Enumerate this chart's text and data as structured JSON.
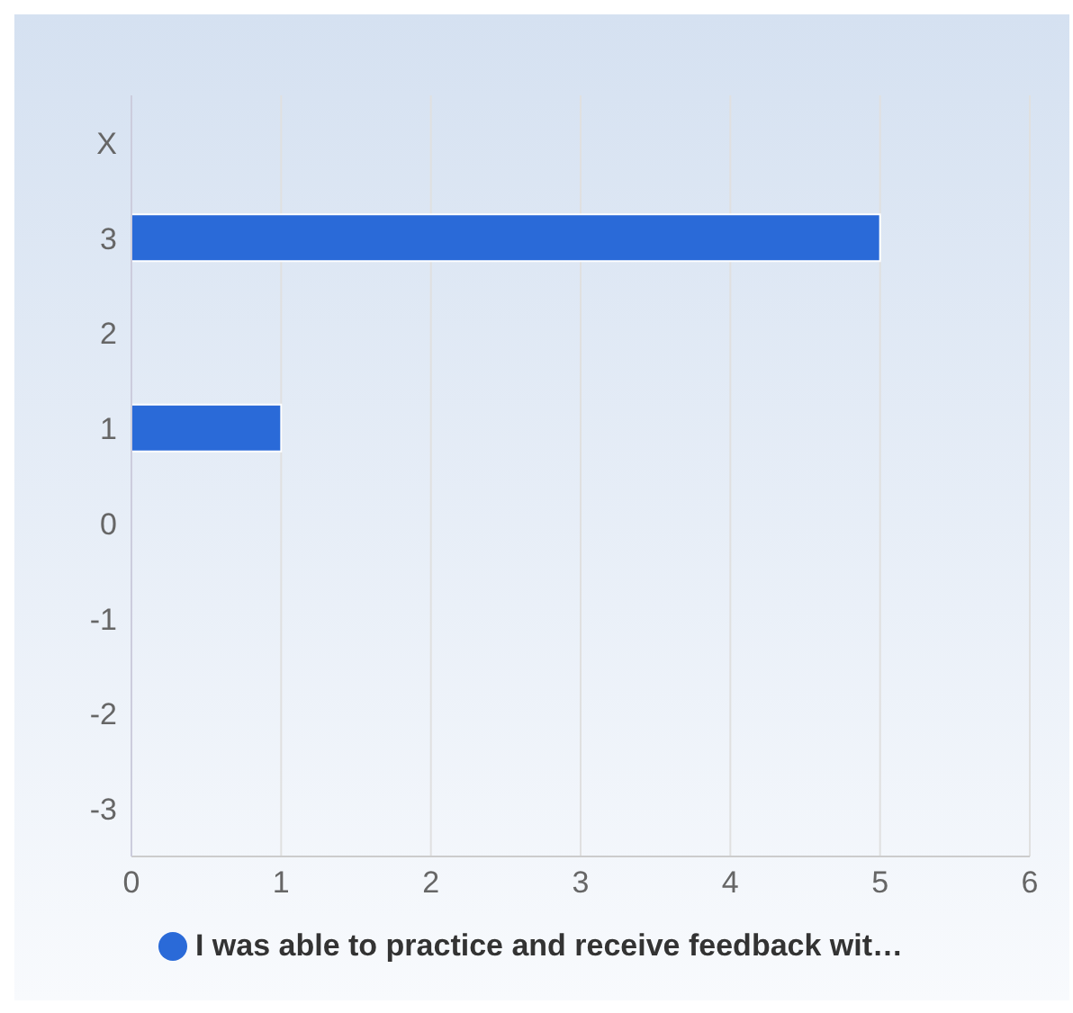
{
  "chart_data": {
    "type": "bar",
    "orientation": "horizontal",
    "categories": [
      "X",
      "3",
      "2",
      "1",
      "0",
      "-1",
      "-2",
      "-3"
    ],
    "series": [
      {
        "name": "I was able to practice and receive feedback wit…",
        "color": "#2a6ad8",
        "values": [
          null,
          5,
          null,
          1,
          null,
          null,
          null,
          null
        ]
      }
    ],
    "xlim": [
      0,
      6
    ],
    "xticks": [
      0,
      1,
      2,
      3,
      4,
      5,
      6
    ],
    "grid": "x",
    "legend": "bottom"
  }
}
